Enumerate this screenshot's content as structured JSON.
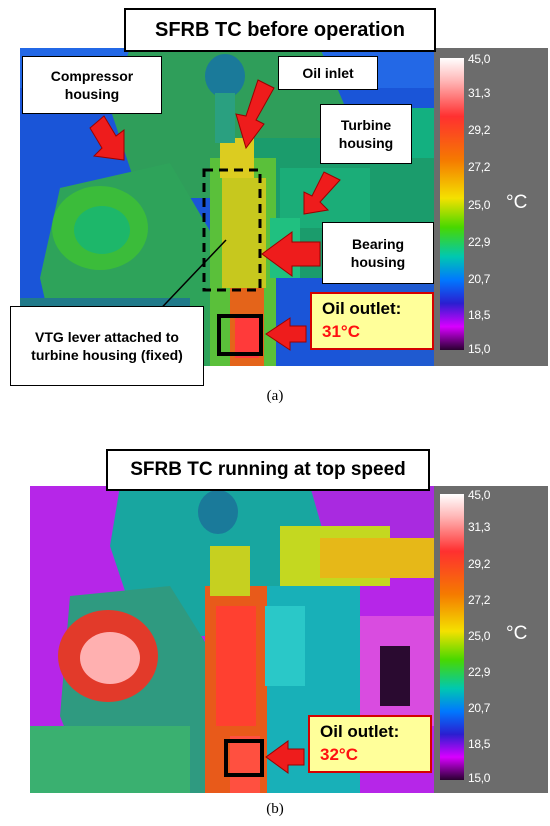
{
  "panel_a": {
    "title": "SFRB TC before operation",
    "labels": {
      "compressor": "Compressor housing",
      "oil_inlet": "Oil inlet",
      "turbine": "Turbine housing",
      "bearing": "Bearing housing",
      "vtg": "VTG lever attached to turbine housing (fixed)"
    },
    "oil_outlet_label": "Oil outlet:",
    "oil_outlet_temp": "31°C",
    "caption": "(a)"
  },
  "panel_b": {
    "title": "SFRB TC running at top speed",
    "oil_outlet_label": "Oil outlet:",
    "oil_outlet_temp": "32°C",
    "caption": "(b)"
  },
  "scale": {
    "ticks": [
      "45,0",
      "31,3",
      "29,2",
      "27,2",
      "25,0",
      "22,9",
      "20,7",
      "18,5",
      "15,0"
    ],
    "unit": "°C"
  },
  "colors": {
    "arrow": "#ee1c1c",
    "oil_box_fill": "#ffff9a",
    "oil_box_border": "#d40000",
    "oil_temp_text": "#ff1010",
    "scale_background": "#6c6c6c"
  }
}
